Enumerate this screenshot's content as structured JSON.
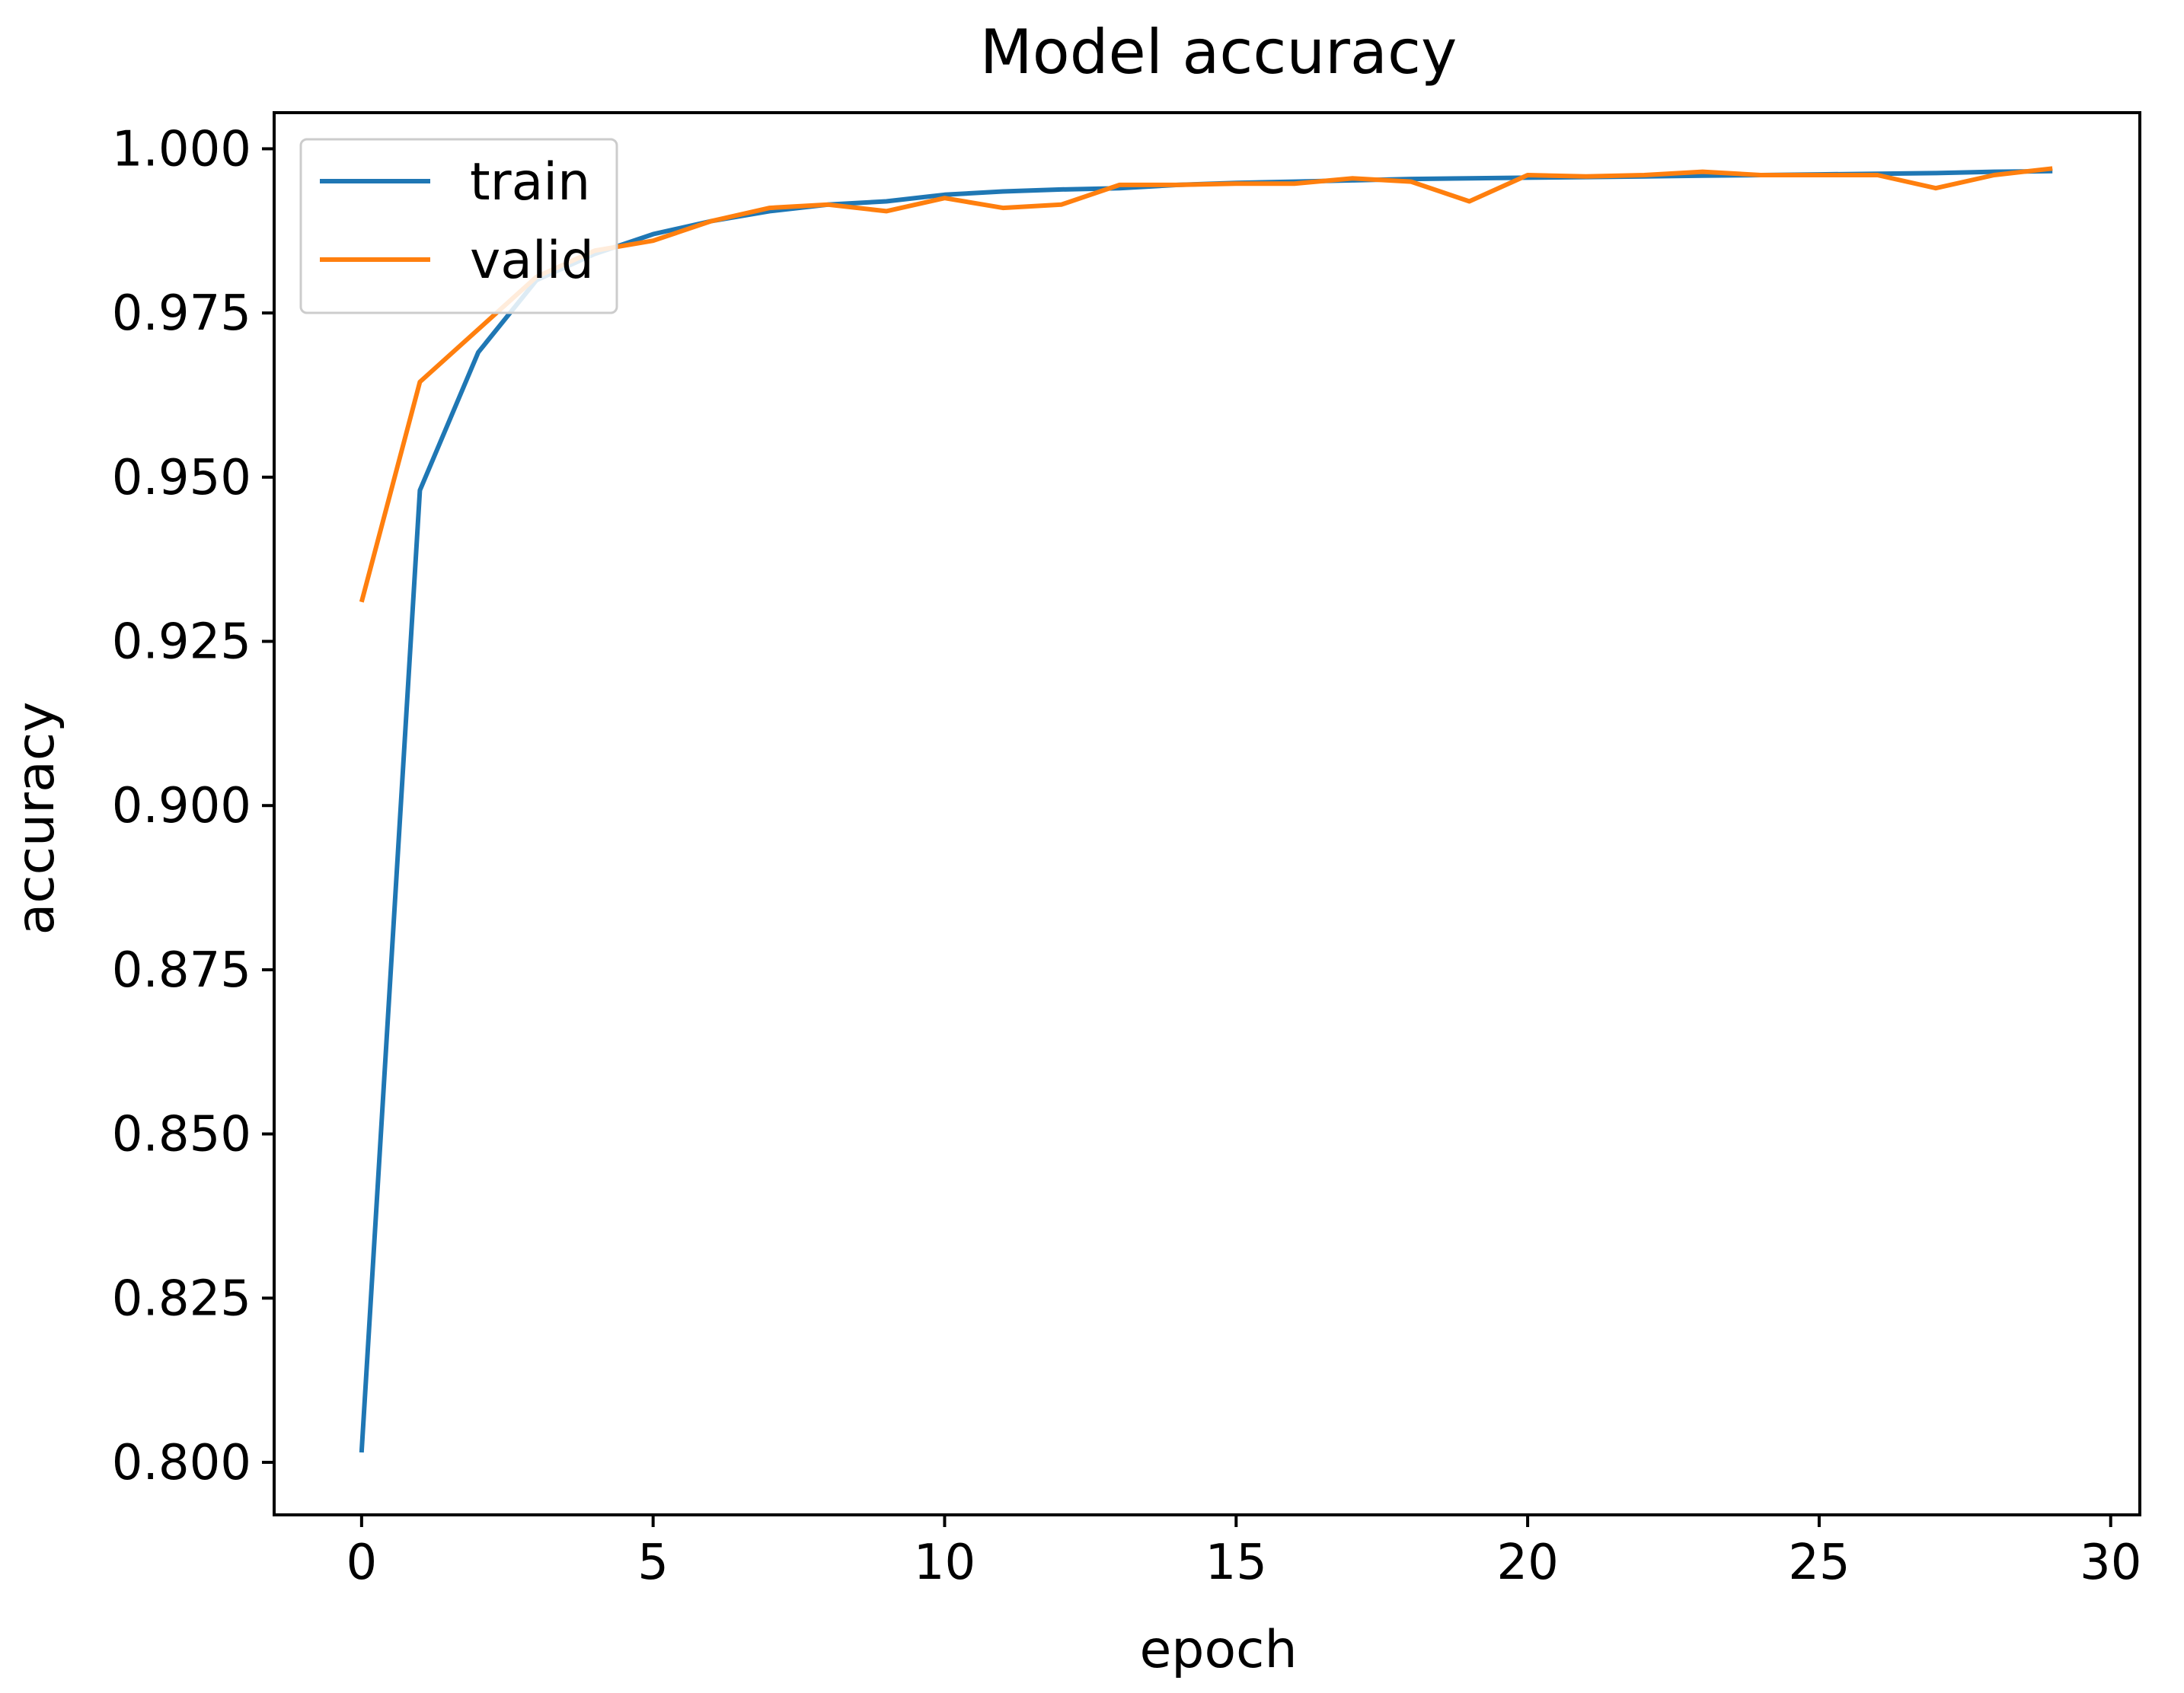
{
  "chart_data": {
    "type": "line",
    "title": "Model accuracy",
    "xlabel": "epoch",
    "ylabel": "accuracy",
    "xlim": [
      -1.5,
      30.5
    ],
    "ylim": [
      0.792,
      1.0055
    ],
    "xticks": [
      0,
      5,
      10,
      15,
      20,
      25,
      30
    ],
    "xtick_labels": [
      "0",
      "5",
      "10",
      "15",
      "20",
      "25",
      "30"
    ],
    "yticks": [
      0.8,
      0.825,
      0.85,
      0.875,
      0.9,
      0.925,
      0.95,
      0.975,
      1.0
    ],
    "ytick_labels": [
      "0.800",
      "0.825",
      "0.850",
      "0.875",
      "0.900",
      "0.925",
      "0.950",
      "0.975",
      "1.000"
    ],
    "grid": false,
    "legend_position": "top-left",
    "x": [
      0,
      1,
      2,
      3,
      4,
      5,
      6,
      7,
      8,
      9,
      10,
      11,
      12,
      13,
      14,
      15,
      16,
      17,
      18,
      19,
      20,
      21,
      22,
      23,
      24,
      25,
      26,
      27,
      28,
      29
    ],
    "series": [
      {
        "name": "train",
        "color": "#1f77b4",
        "values": [
          0.8015,
          0.948,
          0.969,
          0.98,
          0.984,
          0.987,
          0.989,
          0.9905,
          0.9915,
          0.992,
          0.993,
          0.9935,
          0.9938,
          0.994,
          0.9945,
          0.9948,
          0.995,
          0.9952,
          0.9954,
          0.9955,
          0.9956,
          0.9957,
          0.9958,
          0.9959,
          0.996,
          0.9961,
          0.9962,
          0.9963,
          0.9965,
          0.9966
        ]
      },
      {
        "name": "valid",
        "color": "#ff7f0e",
        "values": [
          0.931,
          0.9645,
          0.9725,
          0.9805,
          0.9845,
          0.986,
          0.989,
          0.991,
          0.9915,
          0.9905,
          0.9925,
          0.991,
          0.9915,
          0.9945,
          0.9945,
          0.9947,
          0.9947,
          0.9955,
          0.995,
          0.992,
          0.996,
          0.9958,
          0.996,
          0.9965,
          0.996,
          0.996,
          0.996,
          0.994,
          0.996,
          0.997
        ]
      }
    ]
  }
}
